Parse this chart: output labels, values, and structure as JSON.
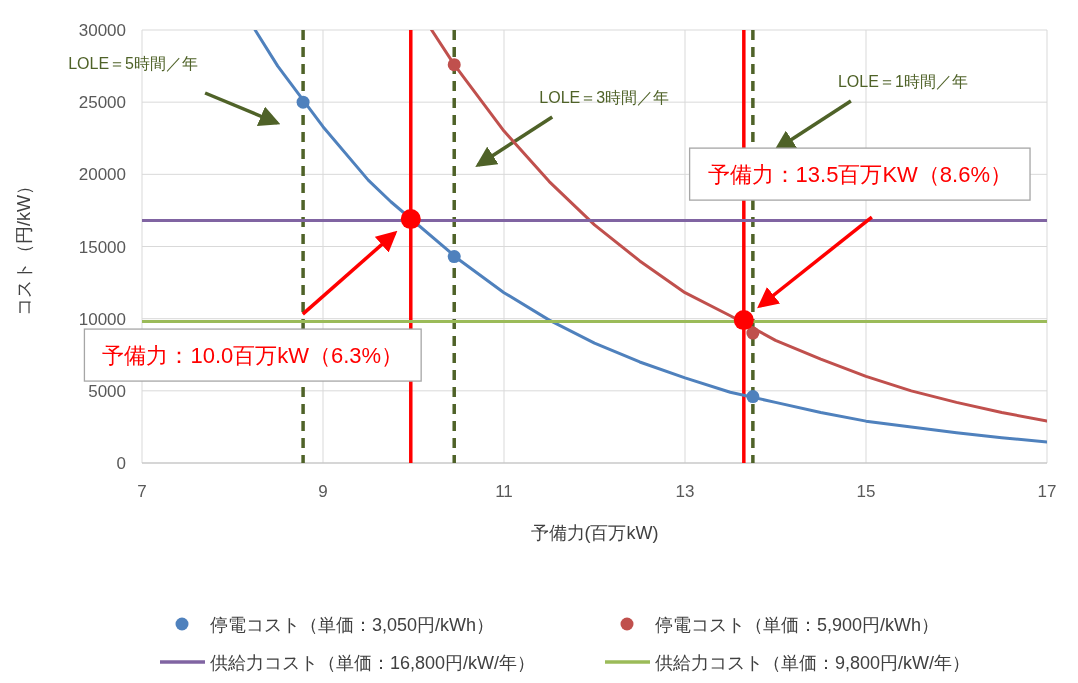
{
  "chart_data": {
    "type": "scatter",
    "xlabel": "予備力(百万kW)",
    "ylabel": "コスト（円/kW）",
    "xlim": [
      7,
      17
    ],
    "xticks": [
      7,
      9,
      11,
      13,
      15,
      17
    ],
    "ylim": [
      0,
      30000
    ],
    "yticks": [
      0,
      5000,
      10000,
      15000,
      20000,
      25000,
      30000
    ],
    "grid": true,
    "legend": "bottom",
    "marker": "circle",
    "series": [
      {
        "type": "line",
        "marker": "none",
        "color": "#4f81bd",
        "x": [
          8.25,
          8.5,
          9,
          9.5,
          9.75,
          10.5,
          11,
          11.5,
          12,
          12.5,
          13,
          13.5,
          14,
          14.5,
          15,
          15.5,
          16,
          16.5,
          17
        ],
        "values": [
          30000,
          27500,
          23300,
          19600,
          18100,
          14100,
          11800,
          9900,
          8300,
          7000,
          5900,
          4900,
          4200,
          3500,
          2900,
          2500,
          2100,
          1750,
          1450
        ]
      },
      {
        "type": "line",
        "marker": "none",
        "color": "#c0504d",
        "x": [
          10.2,
          10.45,
          11,
          11.5,
          12,
          12.5,
          13,
          13.5,
          14,
          14.5,
          15,
          15.5,
          16,
          16.5,
          17
        ],
        "values": [
          30000,
          27600,
          23000,
          19500,
          16500,
          14000,
          11800,
          10200,
          8500,
          7200,
          6000,
          5000,
          4200,
          3500,
          2900
        ]
      },
      {
        "name": "停電コスト（単価：3,050円/kWh）",
        "color": "#4f81bd",
        "x": [
          8.78,
          10.45,
          13.75
        ],
        "values": [
          25000,
          14300,
          4600
        ]
      },
      {
        "name": "停電コスト（単価：5,900円/kWh）",
        "color": "#c0504d",
        "x": [
          10.45,
          13.75
        ],
        "values": [
          27600,
          9000
        ]
      },
      {
        "type": "line",
        "marker": "none",
        "name": "供給力コスト（単価：16,800円/kW/年）",
        "color": "#8064a2",
        "x": [
          7,
          17
        ],
        "values": [
          16800,
          16800
        ]
      },
      {
        "type": "line",
        "marker": "none",
        "name": "供給力コスト（単価：9,800円/kW/年）",
        "color": "#9bbb59",
        "x": [
          7,
          17
        ],
        "values": [
          9800,
          9800
        ]
      },
      {
        "color": "#ff0000",
        "x": [
          9.97,
          13.65
        ],
        "values": [
          16900,
          9900
        ]
      }
    ],
    "ref_lines": [
      {
        "axis": "x",
        "value": 8.78,
        "label": "LOLE＝5時間／年",
        "color": "#4f6228",
        "line_style": "dashed"
      },
      {
        "axis": "x",
        "value": 10.45,
        "label": "LOLE＝3時間／年",
        "color": "#4f6228",
        "line_style": "dashed"
      },
      {
        "axis": "x",
        "value": 13.75,
        "label": "LOLE＝1時間／年",
        "color": "#4f6228",
        "line_style": "dashed"
      },
      {
        "axis": "x",
        "value": 9.97,
        "color": "#ff0000",
        "line_style": "solid"
      },
      {
        "axis": "x",
        "value": 13.65,
        "color": "#ff0000",
        "line_style": "solid"
      }
    ],
    "annotations": [
      "予備力：10.0百万kW（6.3%）",
      "予備力：13.5百万KW（8.6%）"
    ]
  }
}
